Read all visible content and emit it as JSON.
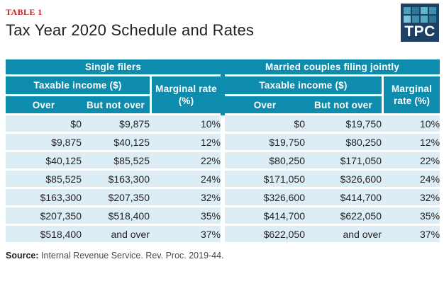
{
  "chart_data": {
    "type": "table",
    "table_label": "TABLE 1",
    "title": "Tax Year 2020 Schedule and Rates",
    "sections": [
      {
        "title": "Single filers",
        "income_group_header": "Taxable income ($)",
        "marginal_header": "Marginal rate (%)",
        "col_over": "Over",
        "col_but_not_over": "But not over",
        "rows": [
          [
            "$0",
            "$9,875",
            "10%"
          ],
          [
            "$9,875",
            "$40,125",
            "12%"
          ],
          [
            "$40,125",
            "$85,525",
            "22%"
          ],
          [
            "$85,525",
            "$163,300",
            "24%"
          ],
          [
            "$163,300",
            "$207,350",
            "32%"
          ],
          [
            "$207,350",
            "$518,400",
            "35%"
          ],
          [
            "$518,400",
            "and over",
            "37%"
          ]
        ]
      },
      {
        "title": "Married couples filing jointly",
        "income_group_header": "Taxable income ($)",
        "marginal_header": "Marginal rate (%)",
        "col_over": "Over",
        "col_but_not_over": "But not over",
        "rows": [
          [
            "$0",
            "$19,750",
            "10%"
          ],
          [
            "$19,750",
            "$80,250",
            "12%"
          ],
          [
            "$80,250",
            "$171,050",
            "22%"
          ],
          [
            "$171,050",
            "$326,600",
            "24%"
          ],
          [
            "$326,600",
            "$414,700",
            "32%"
          ],
          [
            "$414,700",
            "$622,050",
            "35%"
          ],
          [
            "$622,050",
            "and over",
            "37%"
          ]
        ]
      }
    ],
    "layout_hints": {
      "header_style": "grouped two-level",
      "grid": "white row separators on light-blue rows"
    }
  },
  "source": {
    "label": "Source:",
    "text": " Internal Revenue Service. Rev. Proc. 2019-44."
  },
  "logo": {
    "text": "TPC",
    "bg": "#1d4164",
    "squares": [
      "#4a9fba",
      "#2f7494",
      "#63b5cb",
      "#3d8fae",
      "#7cc4d6",
      "#3d8fae",
      "#55a9c2",
      "#2f7494"
    ]
  },
  "colors": {
    "header_teal": "#0d8cae",
    "row_light_blue": "#ddedf6",
    "accent_red": "#c62026",
    "text_dark": "#231f20",
    "logo_navy": "#1d4164"
  }
}
